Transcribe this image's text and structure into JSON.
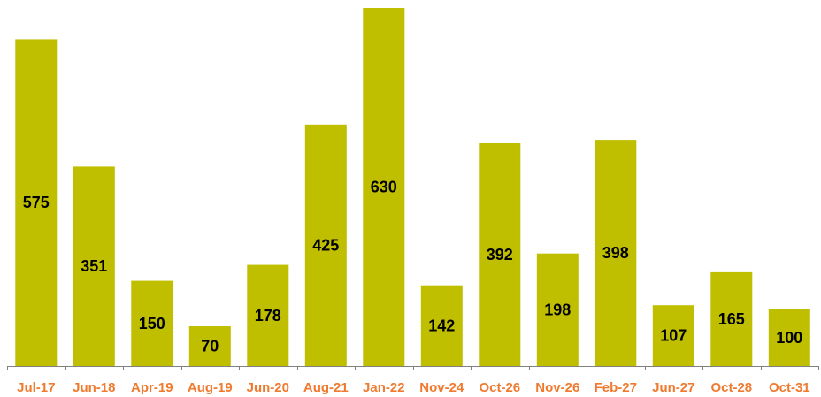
{
  "chart_data": {
    "type": "bar",
    "title": "",
    "xlabel": "",
    "ylabel": "",
    "categories": [
      "Jul-17",
      "Jun-18",
      "Apr-19",
      "Aug-19",
      "Jun-20",
      "Aug-21",
      "Jan-22",
      "Nov-24",
      "Oct-26",
      "Nov-26",
      "Feb-27",
      "Jun-27",
      "Oct-28",
      "Oct-31"
    ],
    "values": [
      575,
      351,
      150,
      70,
      178,
      425,
      630,
      142,
      392,
      198,
      398,
      107,
      165,
      100
    ],
    "ylim": [
      0,
      630
    ],
    "grid": false,
    "legend": "none",
    "data_labels": true,
    "colors": {
      "bar": "#bfbf00",
      "tick_label": "#f07a2e",
      "axis": "#808080",
      "data_label": "#000000"
    }
  }
}
